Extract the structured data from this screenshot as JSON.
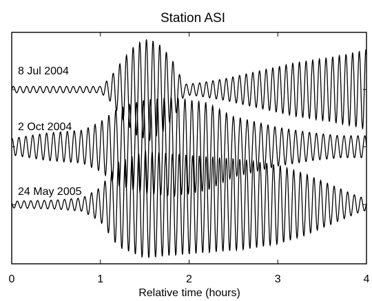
{
  "chart_data": {
    "type": "line",
    "title": "Station ASI",
    "xlabel": "Relative time (hours)",
    "ylabel": "",
    "xlim": [
      0,
      4
    ],
    "xticks": [
      "0",
      "1",
      "2",
      "3",
      "4"
    ],
    "grid": false,
    "legend": "none",
    "series": [
      {
        "name": "8 Jul 2004",
        "x": [
          0,
          1.0,
          1.1,
          1.25,
          1.4,
          1.55,
          1.7,
          1.85,
          1.9,
          1.95,
          2.1,
          2.4,
          2.8,
          3.2,
          3.6,
          3.9,
          4.0
        ],
        "amplitude": [
          0.06,
          0.06,
          0.2,
          0.55,
          0.85,
          0.95,
          0.8,
          0.45,
          0.25,
          0.1,
          0.12,
          0.2,
          0.35,
          0.5,
          0.6,
          0.7,
          0.75
        ]
      },
      {
        "name": "2 Oct 2004",
        "x": [
          0,
          0.4,
          0.8,
          1.0,
          1.2,
          1.5,
          1.8,
          2.2,
          2.5,
          3.0,
          3.4,
          3.7,
          4.0
        ],
        "amplitude": [
          0.15,
          0.25,
          0.3,
          0.45,
          0.7,
          0.85,
          0.9,
          0.8,
          0.55,
          0.35,
          0.25,
          0.2,
          0.2
        ]
      },
      {
        "name": "24 May 2005",
        "x": [
          0,
          0.5,
          0.8,
          1.0,
          1.2,
          1.5,
          1.8,
          2.2,
          2.6,
          3.0,
          3.3,
          3.6,
          3.9,
          4.0
        ],
        "amplitude": [
          0.06,
          0.08,
          0.12,
          0.3,
          0.75,
          0.95,
          0.9,
          0.85,
          0.8,
          0.7,
          0.55,
          0.35,
          0.15,
          0.1
        ]
      }
    ]
  }
}
